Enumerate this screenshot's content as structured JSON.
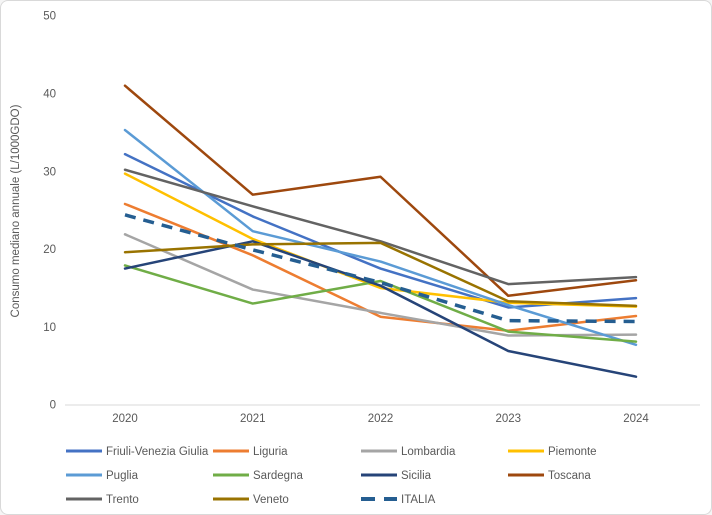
{
  "chart_data": {
    "type": "line",
    "title": "",
    "xlabel": "",
    "ylabel": "Consumo mediano annuale (L/1000GDO)",
    "x": [
      2020,
      2021,
      2022,
      2023,
      2024
    ],
    "ylim": [
      0,
      50
    ],
    "yticks": [
      0,
      10,
      20,
      30,
      40,
      50
    ],
    "grid": false,
    "legend_position": "bottom",
    "legend_columns": 4,
    "series": [
      {
        "name": "Friuli-Venezia Giulia",
        "color": "#4472C4",
        "dashed": false,
        "values": [
          32.2,
          24.2,
          17.5,
          12.5,
          13.7
        ]
      },
      {
        "name": "Liguria",
        "color": "#ED7D31",
        "dashed": false,
        "values": [
          25.8,
          19.2,
          11.3,
          9.5,
          11.4
        ]
      },
      {
        "name": "Lombardia",
        "color": "#A5A5A5",
        "dashed": false,
        "values": [
          21.9,
          14.8,
          11.8,
          8.9,
          9.0
        ]
      },
      {
        "name": "Piemonte",
        "color": "#FFC000",
        "dashed": false,
        "values": [
          29.7,
          21.3,
          15.0,
          13.1,
          12.6
        ]
      },
      {
        "name": "Puglia",
        "color": "#5B9BD5",
        "dashed": false,
        "values": [
          35.3,
          22.3,
          18.4,
          12.8,
          7.7
        ]
      },
      {
        "name": "Sardegna",
        "color": "#70AD47",
        "dashed": false,
        "values": [
          17.9,
          13.0,
          15.9,
          9.4,
          8.1
        ]
      },
      {
        "name": "Sicilia",
        "color": "#264478",
        "dashed": false,
        "values": [
          17.5,
          21.0,
          15.3,
          6.9,
          3.6
        ]
      },
      {
        "name": "Toscana",
        "color": "#9E480E",
        "dashed": false,
        "values": [
          41.0,
          27.0,
          29.3,
          14.0,
          16.0
        ]
      },
      {
        "name": "Trento",
        "color": "#636363",
        "dashed": false,
        "values": [
          30.2,
          25.5,
          21.0,
          15.5,
          16.4
        ]
      },
      {
        "name": "Veneto",
        "color": "#997300",
        "dashed": false,
        "values": [
          19.6,
          20.6,
          20.8,
          13.3,
          12.7
        ]
      },
      {
        "name": "ITALIA",
        "color": "#255E91",
        "dashed": true,
        "values": [
          24.4,
          19.9,
          15.7,
          10.8,
          10.7
        ]
      }
    ]
  },
  "colors": {
    "axis_line": "#D9D9D9",
    "tick_text": "#595959",
    "frame_border": "#D9D9D9",
    "background": "#FFFFFF"
  }
}
